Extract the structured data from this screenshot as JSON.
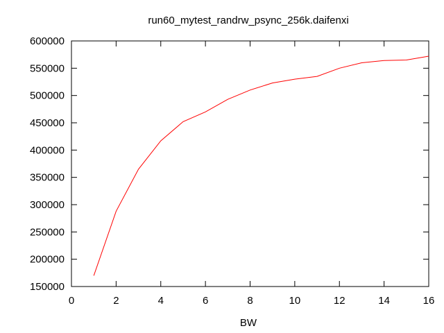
{
  "chart_data": {
    "type": "line",
    "title": "run60_mytest_randrw_psync_256k.daifenxi",
    "xlabel": "BW",
    "ylabel": "",
    "xlim": [
      0,
      16
    ],
    "ylim": [
      150000,
      600000
    ],
    "x_ticks": [
      0,
      2,
      4,
      6,
      8,
      10,
      12,
      14,
      16
    ],
    "y_ticks": [
      150000,
      200000,
      250000,
      300000,
      350000,
      400000,
      450000,
      500000,
      550000,
      600000
    ],
    "grid": false,
    "legend": "none",
    "series": [
      {
        "color": "#ff0000",
        "x": [
          1,
          2,
          3,
          4,
          5,
          6,
          7,
          8,
          9,
          10,
          11,
          12,
          13,
          14,
          15,
          16
        ],
        "y": [
          170000,
          288000,
          365000,
          417000,
          452000,
          470000,
          493000,
          510000,
          523000,
          530000,
          535000,
          550000,
          560000,
          564000,
          565000,
          572000
        ]
      }
    ]
  }
}
